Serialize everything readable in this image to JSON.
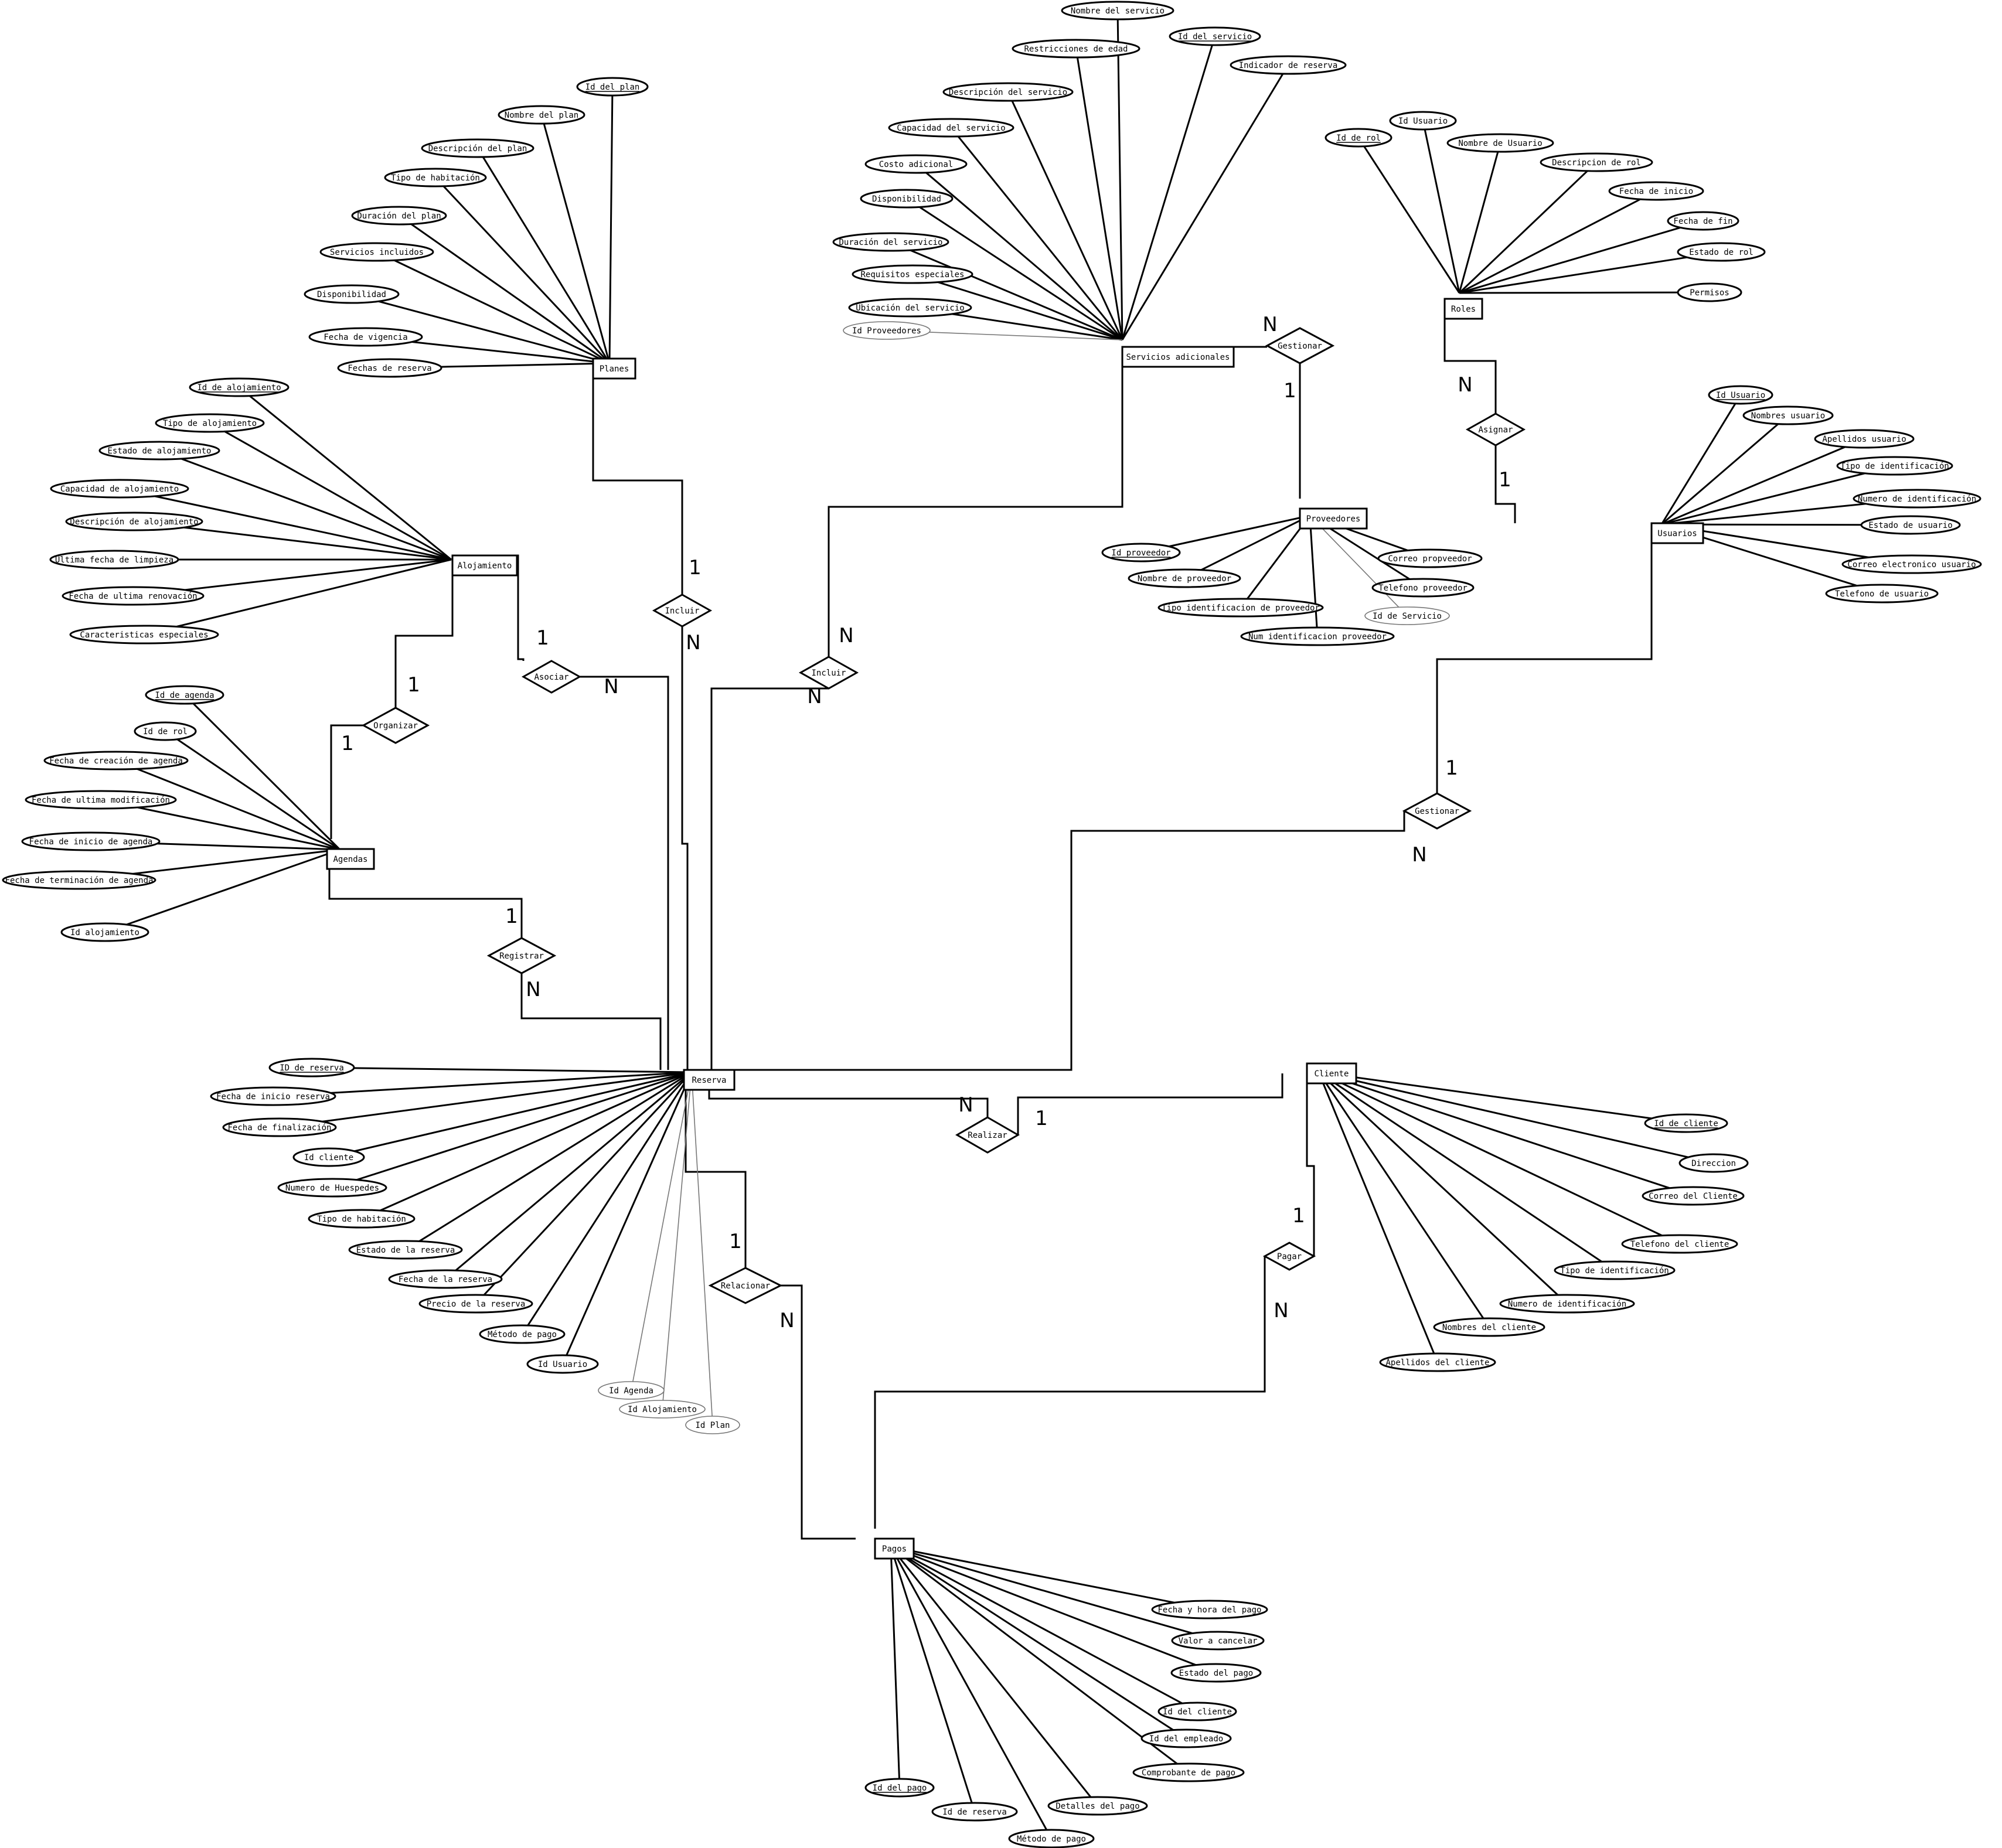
{
  "entities": {
    "planes": "Planes",
    "servicios": "Servicios adicionales",
    "roles": "Roles",
    "alojamiento": "Alojamiento",
    "proveedores": "Proveedores",
    "usuarios": "Usuarios",
    "agendas": "Agendas",
    "reserva": "Reserva",
    "cliente": "Cliente",
    "pagos": "Pagos"
  },
  "relationships": {
    "incluir_planes": "Incluir",
    "incluir_servicios": "Incluir",
    "asociar": "Asociar",
    "organizar": "Organizar",
    "registrar": "Registrar",
    "gestionar_proveedores": "Gestionar",
    "asignar": "Asignar",
    "gestionar_usuarios": "Gestionar",
    "realizar": "Realizar",
    "relacionar": "Relacionar",
    "pagar": "Pagar"
  },
  "attributes": {
    "planes": [
      "Id del plan",
      "Nombre del plan",
      "Descripción del plan",
      "Tipo de habitación",
      "Duración del plan",
      "Servicios incluidos",
      "Disponibilidad",
      "Fecha de vigencia",
      "Fechas de reserva"
    ],
    "servicios": [
      "Nombre del servicio",
      "Restricciones de edad",
      "Id del servicio",
      "Indicador de reserva",
      "Descripción del servicio",
      "Capacidad del servicio",
      "Costo adicional",
      "Disponibilidad",
      "Duración del servicio",
      "Requisitos especiales",
      "Ubicación del servicio",
      "Id Proveedores"
    ],
    "roles": [
      "Id de rol",
      "Id Usuario",
      "Nombre de Usuario",
      "Descripcion de rol",
      "Fecha de inicio",
      "Fecha de fin",
      "Estado de rol",
      "Permisos"
    ],
    "alojamiento": [
      "Id de alojamiento",
      "Tipo de alojamiento",
      "Estado de alojamiento",
      "Capacidad de alojamiento",
      "Descripción de alojamiento",
      "Ultima fecha de limpieza",
      "Fecha de ultima renovación",
      "Caracteristicas especiales"
    ],
    "proveedores": [
      "Id proveedor",
      "Nombre de proveedor",
      "Tipo identificacion de proveedor",
      "Num identificacion proveedor",
      "Id de Servicio",
      "Telefono proveedor",
      "Correo propveedor"
    ],
    "usuarios": [
      "Id Usuario",
      "Nombres usuario",
      "Apellidos usuario",
      "Tipo de identificación",
      "Numero de identificación",
      "Estado de usuario",
      "Correo electronico usuario",
      "Telefono de usuario"
    ],
    "agendas": [
      "Id de agenda",
      "Id de rol",
      "Fecha de creación de agenda",
      "Fecha de ultima modificación",
      "Fecha de inicio de agenda",
      "Fecha de terminación de agenda",
      "Id alojamiento"
    ],
    "reserva": [
      "ID de reserva",
      "Fecha de inicio reserva",
      "Fecha de finalización",
      "Id cliente",
      "Numero de Huespedes",
      "Tipo de habitación",
      "Estado de la reserva",
      "Fecha de la reserva",
      "Precio de la reserva",
      "Método de pago",
      "Id Usuario",
      "Id Agenda",
      "Id Alojamiento",
      "Id Plan"
    ],
    "cliente": [
      "Id de cliente",
      "Direccion",
      "Correo del Cliente",
      "Telefono del cliente",
      "Tipo de identificación",
      "Numero de identificación",
      "Nombres del cliente",
      "Apellidos del cliente"
    ],
    "pagos": [
      "Fecha y hora del pago",
      "Valor a cancelar",
      "Estado del pago",
      "Id del cliente",
      "Id del empleado",
      "Comprobante de pago",
      "Detalles del pago",
      "Id de reserva",
      "Método de pago",
      "Id del pago"
    ]
  },
  "cardinalities": {
    "incluir_planes_top": "1",
    "incluir_planes_bottom": "N",
    "incluir_servicios_top": "N",
    "incluir_servicios_bottom": "N",
    "asociar_top": "1",
    "asociar_right": "N",
    "organizar_top": "1",
    "organizar_left": "1",
    "registrar_top": "1",
    "registrar_bottom": "N",
    "gestionar_prov_left": "N",
    "gestionar_prov_bottom": "1",
    "asignar_top": "N",
    "asignar_bottom": "1",
    "gestionar_usr_top": "1",
    "gestionar_usr_bottom": "N",
    "realizar_left": "N",
    "realizar_right": "1",
    "relacionar_top": "1",
    "relacionar_bottom": "N",
    "pagar_top": "1",
    "pagar_bottom": "N"
  }
}
